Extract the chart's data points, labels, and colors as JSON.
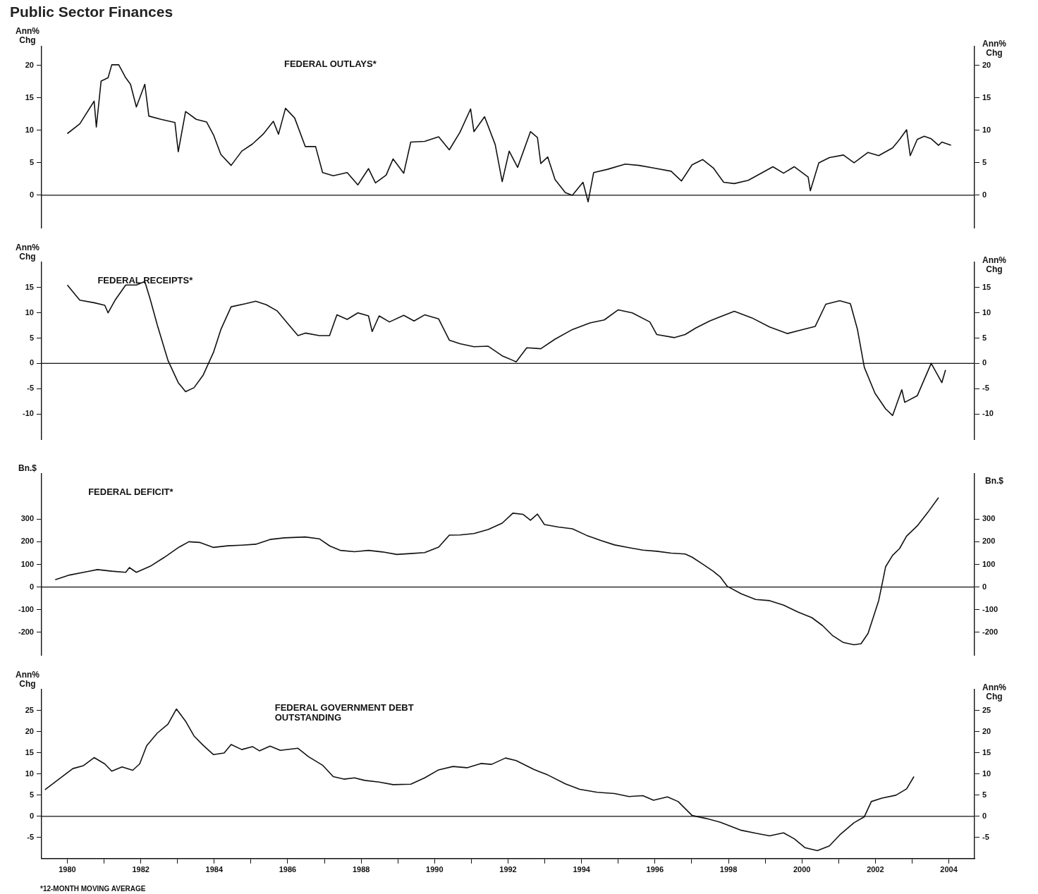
{
  "chart_data": [
    {
      "type": "line",
      "title": "Public Sector Finances",
      "subtitle": "FEDERAL OUTLAYS*",
      "ylabel": "Ann% Chg",
      "y2label": "Ann% Chg",
      "xlim": [
        1979.3,
        2004.7
      ],
      "ylim": [
        -5,
        23
      ],
      "yticks": [
        0,
        5,
        10,
        15,
        20
      ],
      "y2lim": [
        -5,
        23
      ],
      "y2ticks": [
        0,
        5,
        10,
        15,
        20
      ],
      "tick_labels": "y",
      "ref_lines": [
        {
          "axis": "y",
          "value": 0
        }
      ],
      "series": [
        {
          "color": "#111111",
          "x": [
            1980.0,
            1980.34,
            1980.73,
            1980.79,
            1980.92,
            1981.11,
            1981.21,
            1981.4,
            1981.59,
            1981.72,
            1981.88,
            1982.11,
            1982.22,
            1982.55,
            1982.93,
            1983.02,
            1983.22,
            1983.51,
            1983.79,
            1983.98,
            1984.18,
            1984.46,
            1984.75,
            1985.04,
            1985.33,
            1985.61,
            1985.75,
            1985.94,
            1986.19,
            1986.48,
            1986.76,
            1986.95,
            1987.24,
            1987.62,
            1987.91,
            1988.2,
            1988.39,
            1988.68,
            1988.87,
            1989.16,
            1989.35,
            1989.73,
            1990.11,
            1990.4,
            1990.69,
            1990.98,
            1991.07,
            1991.36,
            1991.65,
            1991.84,
            1992.03,
            1992.26,
            1992.61,
            1992.8,
            1992.89,
            1993.08,
            1993.28,
            1993.56,
            1993.75,
            1994.04,
            1994.18,
            1994.33,
            1994.71,
            1995.19,
            1995.57,
            1995.96,
            1996.44,
            1996.72,
            1997.01,
            1997.3,
            1997.59,
            1997.87,
            1998.16,
            1998.54,
            1999.02,
            1999.21,
            1999.5,
            1999.79,
            2000.17,
            2000.23,
            2000.46,
            2000.75,
            2001.13,
            2001.42,
            2001.8,
            2002.09,
            2002.47,
            2002.66,
            2002.85,
            2002.95,
            2003.14,
            2003.33,
            2003.52,
            2003.72,
            2003.81,
            2004.06
          ],
          "values": [
            9.5,
            11,
            14.5,
            10.5,
            17.6,
            18.1,
            20.1,
            20.1,
            18.1,
            17.1,
            13.6,
            17.1,
            12.2,
            11.7,
            11.2,
            6.7,
            12.9,
            11.7,
            11.3,
            9.3,
            6.3,
            4.6,
            6.8,
            7.9,
            9.4,
            11.4,
            9.4,
            13.4,
            11.9,
            7.5,
            7.5,
            3.5,
            3,
            3.5,
            1.6,
            4.1,
            1.9,
            3.1,
            5.6,
            3.4,
            8.2,
            8.3,
            9,
            7,
            9.7,
            13.3,
            9.8,
            12.1,
            7.8,
            2.1,
            6.8,
            4.3,
            9.8,
            8.9,
            4.9,
            5.9,
            2.4,
            0.4,
            0,
            2,
            -1,
            3.5,
            4,
            4.8,
            4.6,
            4.2,
            3.7,
            2.2,
            4.7,
            5.5,
            4.2,
            2,
            1.8,
            2.3,
            3.8,
            4.4,
            3.4,
            4.4,
            2.8,
            0.7,
            5,
            5.8,
            6.2,
            5,
            6.6,
            6.1,
            7.3,
            8.6,
            10.1,
            6.1,
            8.6,
            9.1,
            8.7,
            7.7,
            8.2,
            7.7
          ]
        }
      ]
    },
    {
      "type": "line",
      "subtitle": "FEDERAL RECEIPTS*",
      "ylabel": "Ann% Chg",
      "y2label": "Ann% Chg",
      "xlim": [
        1979.3,
        2004.7
      ],
      "ylim": [
        -15,
        20
      ],
      "yticks": [
        -10,
        -5,
        0,
        5,
        10,
        15
      ],
      "y2lim": [
        -15,
        20
      ],
      "y2ticks": [
        -10,
        -5,
        0,
        5,
        10,
        15
      ],
      "tick_labels": "y",
      "ref_lines": [
        {
          "axis": "y",
          "value": 0
        }
      ],
      "series": [
        {
          "color": "#111111",
          "x": [
            1980.0,
            1980.34,
            1980.73,
            1981.02,
            1981.11,
            1981.3,
            1981.59,
            1981.88,
            1982.11,
            1982.26,
            1982.45,
            1982.74,
            1983.02,
            1983.22,
            1983.45,
            1983.7,
            1983.98,
            1984.18,
            1984.46,
            1984.85,
            1985.13,
            1985.42,
            1985.71,
            1986.0,
            1986.28,
            1986.48,
            1986.86,
            1987.14,
            1987.34,
            1987.62,
            1987.91,
            1988.2,
            1988.3,
            1988.49,
            1988.77,
            1989.16,
            1989.44,
            1989.73,
            1990.11,
            1990.4,
            1990.69,
            1991.07,
            1991.46,
            1991.84,
            1992.13,
            1992.22,
            1992.51,
            1992.89,
            1993.28,
            1993.75,
            1994.23,
            1994.62,
            1995.0,
            1995.38,
            1995.86,
            1996.05,
            1996.53,
            1996.82,
            1997.11,
            1997.49,
            1998.16,
            1998.64,
            1999.12,
            1999.6,
            1999.98,
            2000.36,
            2000.65,
            2001.03,
            2001.32,
            2001.51,
            2001.7,
            2001.99,
            2002.28,
            2002.47,
            2002.72,
            2002.8,
            2003.14,
            2003.52,
            2003.81,
            2003.91
          ],
          "values": [
            15.5,
            12.5,
            12,
            11.5,
            10,
            12.5,
            15.5,
            15.5,
            16.2,
            12.6,
            7.6,
            0.6,
            -3.8,
            -5.6,
            -4.8,
            -2.3,
            2.2,
            6.7,
            11.2,
            11.8,
            12.3,
            11.6,
            10.4,
            7.9,
            5.5,
            6,
            5.5,
            5.5,
            9.6,
            8.7,
            10,
            9.4,
            6.3,
            9.4,
            8.2,
            9.5,
            8.4,
            9.6,
            8.8,
            4.6,
            3.9,
            3.3,
            3.4,
            1.5,
            0.6,
            0.3,
            3.1,
            2.9,
            4.8,
            6.7,
            8,
            8.6,
            10.6,
            10,
            8.2,
            5.7,
            5.1,
            5.7,
            7,
            8.4,
            10.3,
            9,
            7.2,
            5.9,
            6.6,
            7.3,
            11.7,
            12.4,
            11.8,
            6.8,
            -0.8,
            -5.9,
            -9,
            -10.3,
            -5.2,
            -7.7,
            -6.4,
            0,
            -3.8,
            -1.3
          ]
        }
      ]
    },
    {
      "type": "line",
      "subtitle": "FEDERAL DEFICIT*",
      "ylabel": "Bn.$",
      "y2label": "Bn.$",
      "xlim": [
        1979.3,
        2004.7
      ],
      "ylim": [
        -300,
        500
      ],
      "yticks": [
        -200,
        -100,
        0,
        100,
        200,
        300
      ],
      "y2lim": [
        -300,
        500
      ],
      "y2ticks": [
        -200,
        -100,
        0,
        100,
        200,
        300
      ],
      "tick_labels": "y",
      "ref_lines": [
        {
          "axis": "y",
          "value": 0
        }
      ],
      "series": [
        {
          "color": "#111111",
          "x": [
            1979.67,
            1980.06,
            1980.54,
            1980.82,
            1981.21,
            1981.59,
            1981.69,
            1981.88,
            1982.26,
            1982.64,
            1983.03,
            1983.31,
            1983.6,
            1983.98,
            1984.37,
            1984.75,
            1985.13,
            1985.52,
            1985.9,
            1986.48,
            1986.86,
            1987.15,
            1987.43,
            1987.82,
            1988.2,
            1988.58,
            1988.97,
            1989.35,
            1989.73,
            1990.11,
            1990.4,
            1990.69,
            1991.07,
            1991.46,
            1991.84,
            1992.13,
            1992.41,
            1992.61,
            1992.8,
            1992.99,
            1993.37,
            1993.75,
            1994.14,
            1994.52,
            1994.9,
            1995.29,
            1995.67,
            1996.05,
            1996.44,
            1996.82,
            1997.01,
            1997.3,
            1997.59,
            1997.78,
            1997.97,
            1998.35,
            1998.74,
            1999.12,
            1999.5,
            1999.89,
            2000.27,
            2000.56,
            2000.84,
            2001.13,
            2001.42,
            2001.61,
            2001.8,
            2001.95,
            2002.09,
            2002.18,
            2002.28,
            2002.47,
            2002.66,
            2002.85,
            2003.14,
            2003.43,
            2003.72
          ],
          "values": [
            32,
            53,
            68,
            77,
            70,
            65,
            86,
            65,
            92,
            131,
            175,
            200,
            197,
            175,
            182,
            185,
            189,
            210,
            217,
            221,
            213,
            181,
            162,
            156,
            162,
            155,
            144,
            148,
            152,
            176,
            229,
            230,
            236,
            254,
            282,
            326,
            321,
            295,
            322,
            276,
            265,
            257,
            228,
            206,
            186,
            174,
            163,
            158,
            150,
            146,
            132,
            101,
            69,
            44,
            3,
            -30,
            -55,
            -60,
            -80,
            -110,
            -135,
            -170,
            -215,
            -245,
            -255,
            -250,
            -205,
            -130,
            -60,
            10,
            90,
            140,
            170,
            225,
            270,
            330,
            395
          ]
        }
      ]
    },
    {
      "type": "line",
      "subtitle": "FEDERAL GOVERNMENT DEBT OUTSTANDING",
      "ylabel": "Ann% Chg",
      "y2label": "Ann% Chg",
      "xlim": [
        1979.3,
        2004.7
      ],
      "xticks": [
        1980,
        {
          "value": 1981,
          "label": null
        },
        1982,
        {
          "value": 1983,
          "label": null
        },
        1984,
        {
          "value": 1985,
          "label": null
        },
        1986,
        {
          "value": 1987,
          "label": null
        },
        1988,
        {
          "value": 1989,
          "label": null
        },
        1990,
        {
          "value": 1991,
          "label": null
        },
        1992,
        {
          "value": 1993,
          "label": null
        },
        1994,
        {
          "value": 1995,
          "label": null
        },
        1996,
        {
          "value": 1997,
          "label": null
        },
        1998,
        {
          "value": 1999,
          "label": null
        },
        2000,
        {
          "value": 2001,
          "label": null
        },
        2002,
        {
          "value": 2003,
          "label": null
        },
        2004
      ],
      "ylim": [
        -10,
        30
      ],
      "yticks": [
        -5,
        0,
        5,
        10,
        15,
        20,
        25
      ],
      "y2lim": [
        -10,
        30
      ],
      "y2ticks": [
        -5,
        0,
        5,
        10,
        15,
        20,
        25
      ],
      "ref_lines": [
        {
          "axis": "y",
          "value": 0
        }
      ],
      "annotations": [
        "*12-MONTH MOVING AVERAGE"
      ],
      "series": [
        {
          "color": "#111111",
          "x": [
            1979.39,
            1979.77,
            1980.15,
            1980.44,
            1980.73,
            1981.02,
            1981.21,
            1981.49,
            1981.78,
            1981.97,
            1982.16,
            1982.45,
            1982.74,
            1982.97,
            1983.22,
            1983.45,
            1983.7,
            1983.98,
            1984.27,
            1984.46,
            1984.75,
            1985.04,
            1985.23,
            1985.52,
            1985.8,
            1986.28,
            1986.57,
            1986.95,
            1987.24,
            1987.53,
            1987.82,
            1988.1,
            1988.49,
            1988.87,
            1989.35,
            1989.73,
            1990.11,
            1990.5,
            1990.88,
            1991.26,
            1991.55,
            1991.93,
            1992.22,
            1992.7,
            1993.08,
            1993.56,
            1993.95,
            1994.43,
            1994.9,
            1995.29,
            1995.67,
            1995.96,
            1996.34,
            1996.63,
            1997.01,
            1997.39,
            1997.78,
            1998.35,
            1998.74,
            1999.12,
            1999.5,
            1999.79,
            2000.08,
            2000.42,
            2000.75,
            2001.03,
            2001.42,
            2001.7,
            2001.89,
            2002.18,
            2002.56,
            2002.85,
            2003.05
          ],
          "values": [
            6.3,
            8.8,
            11.3,
            12,
            13.9,
            12.4,
            10.7,
            11.7,
            10.9,
            12.4,
            16.7,
            19.7,
            21.8,
            25.4,
            22.5,
            19,
            16.8,
            14.6,
            15,
            17,
            15.8,
            16.5,
            15.5,
            16.6,
            15.6,
            16.1,
            14.1,
            12.1,
            9.4,
            8.8,
            9.1,
            8.5,
            8.1,
            7.5,
            7.6,
            9.1,
            11,
            11.8,
            11.5,
            12.5,
            12.3,
            13.8,
            13.2,
            11.1,
            9.8,
            7.7,
            6.4,
            5.7,
            5.4,
            4.7,
            4.9,
            3.8,
            4.6,
            3.5,
            0.2,
            -0.5,
            -1.4,
            -3.3,
            -4,
            -4.6,
            -3.9,
            -5.3,
            -7.4,
            -8.1,
            -7,
            -4.4,
            -1.5,
            -0.1,
            3.5,
            4.3,
            5,
            6.5,
            9.4
          ]
        }
      ]
    }
  ]
}
